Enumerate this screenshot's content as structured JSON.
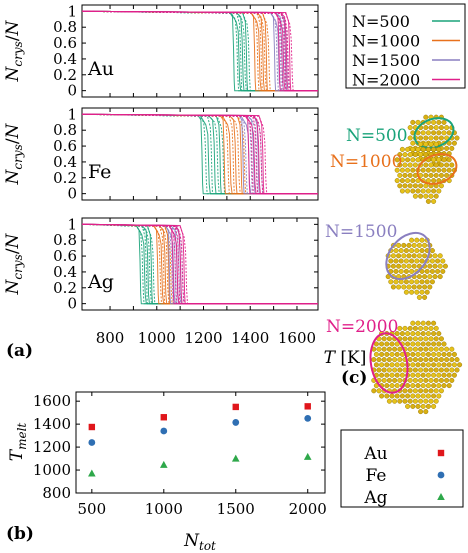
{
  "colors": {
    "N500": "#1aa37a",
    "N1000": "#e8711c",
    "N1500": "#8a7fc0",
    "N2000": "#e0208a",
    "Au": "#e0161b",
    "Fe": "#2f6fb3",
    "Ag": "#2ea84a",
    "gold": "#e6c21a"
  },
  "panel_labels": {
    "a": "(a)",
    "b": "(b)",
    "c": "(c)"
  },
  "legend_top": [
    "N=500",
    "N=1000",
    "N=1500",
    "N=2000"
  ],
  "cluster_labels": [
    "N=500",
    "N=1000",
    "N=1500",
    "N=2000"
  ],
  "chart_data": [
    {
      "id": "a",
      "type": "line",
      "ylabel": "N_crys/N",
      "xlabel": "T [K]",
      "xlim": [
        680,
        1690
      ],
      "xticks": [
        800,
        900,
        1000,
        1100,
        1200,
        1300,
        1400,
        1500,
        1600
      ],
      "ylim": [
        -0.08,
        1.08
      ],
      "yticks": [
        "0",
        "0.2",
        "0.4",
        "0.6",
        "0.8",
        "1"
      ],
      "series_names": [
        "N=500",
        "N=1000",
        "N=1500",
        "N=2000"
      ],
      "subpanels": [
        {
          "element": "Au",
          "series": [
            {
              "name": "N=500",
              "transitions": [
                1330,
                1345,
                1352,
                1360,
                1368,
                1376,
                1385,
                1395
              ]
            },
            {
              "name": "N=1000",
              "transitions": [
                1420,
                1432,
                1440,
                1448,
                1455,
                1462,
                1470,
                1480
              ]
            },
            {
              "name": "N=1500",
              "transitions": [
                1505,
                1515,
                1522,
                1530,
                1537,
                1545,
                1552,
                1560
              ]
            },
            {
              "name": "N=2000",
              "transitions": [
                1525,
                1535,
                1542,
                1550,
                1556,
                1562,
                1570,
                1578
              ]
            }
          ]
        },
        {
          "element": "Fe",
          "series": [
            {
              "name": "N=500",
              "transitions": [
                1195,
                1210,
                1222,
                1235,
                1248,
                1260,
                1272,
                1285
              ]
            },
            {
              "name": "N=1000",
              "transitions": [
                1290,
                1305,
                1315,
                1328,
                1338,
                1350,
                1362,
                1375
              ]
            },
            {
              "name": "N=1500",
              "transitions": [
                1370,
                1382,
                1395,
                1405,
                1415,
                1425,
                1435,
                1448
              ]
            },
            {
              "name": "N=2000",
              "transitions": [
                1395,
                1408,
                1418,
                1428,
                1438,
                1447,
                1455,
                1465
              ]
            }
          ]
        },
        {
          "element": "Ag",
          "series": [
            {
              "name": "N=500",
              "transitions": [
                930,
                940,
                948,
                956,
                963,
                970,
                978,
                986
              ]
            },
            {
              "name": "N=1000",
              "transitions": [
                1005,
                1015,
                1022,
                1030,
                1037,
                1045,
                1052,
                1060
              ]
            },
            {
              "name": "N=1500",
              "transitions": [
                1055,
                1065,
                1072,
                1080,
                1087,
                1095,
                1102,
                1110
              ]
            },
            {
              "name": "N=2000",
              "transitions": [
                1070,
                1080,
                1088,
                1095,
                1103,
                1110,
                1118,
                1126
              ]
            }
          ]
        }
      ]
    },
    {
      "id": "b",
      "type": "scatter",
      "xlabel": "N_tot",
      "ylabel": "T_melt",
      "x": [
        500,
        1000,
        1500,
        2000
      ],
      "xlim": [
        390,
        2120
      ],
      "xticks": [
        500,
        1000,
        1500,
        2000
      ],
      "ylim": [
        800,
        1680
      ],
      "yticks": [
        800,
        1000,
        1200,
        1400,
        1600
      ],
      "series": [
        {
          "name": "Au",
          "marker": "square",
          "values": [
            1375,
            1460,
            1550,
            1555
          ]
        },
        {
          "name": "Fe",
          "marker": "circle",
          "values": [
            1240,
            1340,
            1415,
            1450
          ]
        },
        {
          "name": "Ag",
          "marker": "triangle",
          "values": [
            970,
            1045,
            1100,
            1115
          ]
        }
      ],
      "legend_position": "right"
    }
  ]
}
